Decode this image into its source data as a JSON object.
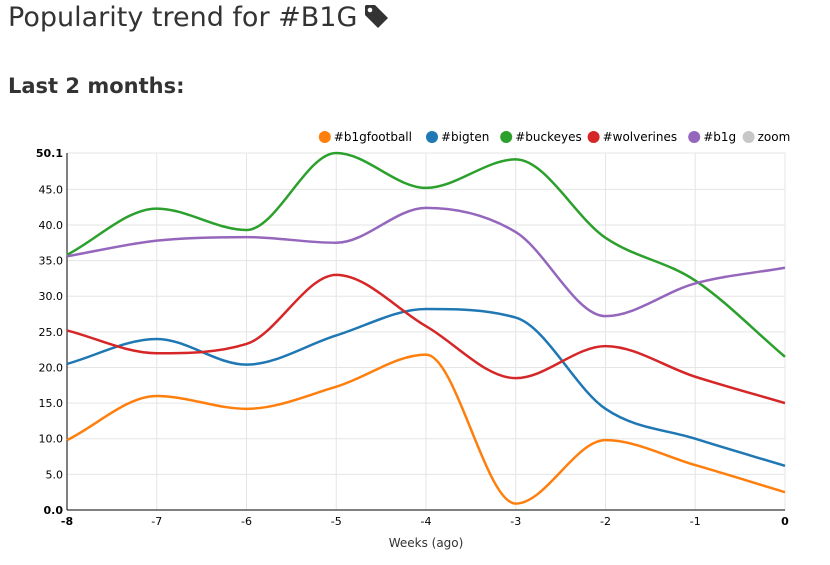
{
  "page": {
    "title": "Popularity trend for #B1G",
    "subtitle": "Last 2 months:"
  },
  "icons": {
    "title_icon": "tag-icon"
  },
  "chart_data": {
    "type": "line",
    "x": [
      -8,
      -7,
      -6,
      -5,
      -4,
      -3,
      -2,
      -1,
      0
    ],
    "xlabel": "Weeks (ago)",
    "ylabel": "",
    "ylim": [
      0,
      50.1
    ],
    "yticks": [
      "0.0",
      "5.0",
      "10.0",
      "15.0",
      "20.0",
      "25.0",
      "30.0",
      "35.0",
      "40.0",
      "45.0",
      "50.1"
    ],
    "xticks": [
      "-8",
      "-7",
      "-6",
      "-5",
      "-4",
      "-3",
      "-2",
      "-1",
      "0"
    ],
    "grid": true,
    "legend_position": "top-right",
    "series": [
      {
        "name": "#b1gfootball",
        "color": "#ff7f0e",
        "values": [
          9.8,
          16.0,
          14.2,
          17.3,
          21.8,
          0.9,
          9.8,
          6.3,
          2.5
        ]
      },
      {
        "name": "#bigten",
        "color": "#1f77b4",
        "values": [
          20.5,
          24.0,
          20.4,
          24.5,
          28.2,
          27.0,
          14.2,
          10.0,
          6.2
        ]
      },
      {
        "name": "#buckeyes",
        "color": "#2ca02c",
        "values": [
          35.8,
          42.3,
          39.3,
          50.1,
          45.2,
          49.2,
          38.2,
          32.2,
          21.5
        ]
      },
      {
        "name": "#wolverines",
        "color": "#d62728",
        "values": [
          25.2,
          22.0,
          23.3,
          33.0,
          25.8,
          18.5,
          23.0,
          18.7,
          15.0
        ]
      },
      {
        "name": "#b1g",
        "color": "#9467bd",
        "values": [
          35.6,
          37.8,
          38.3,
          37.5,
          42.4,
          39.0,
          27.2,
          31.8,
          34.0
        ]
      }
    ],
    "legend_extra": {
      "name": "zoom",
      "color": "#c7c7c7"
    }
  }
}
